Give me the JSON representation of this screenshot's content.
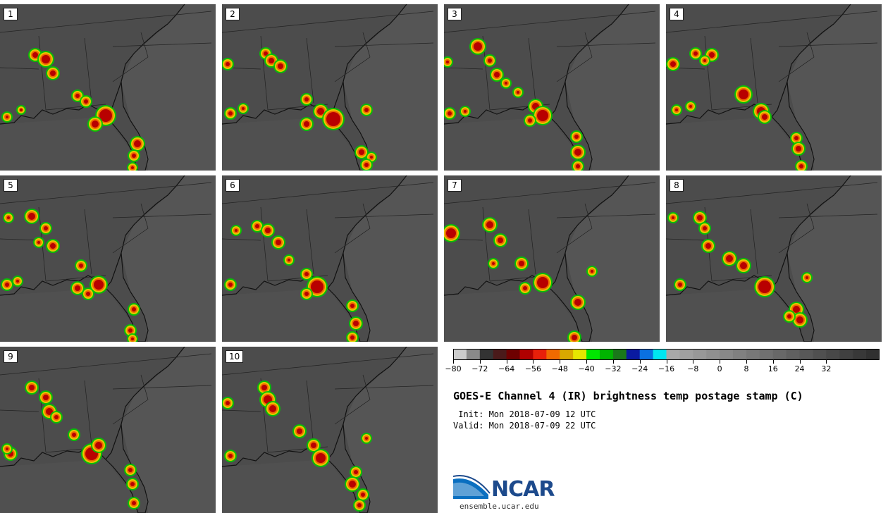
{
  "panels": [
    "1",
    "2",
    "3",
    "4",
    "5",
    "6",
    "7",
    "8",
    "9",
    "10"
  ],
  "colorbar": {
    "colors": [
      "#cccccc",
      "#8a8a8a",
      "#333333",
      "#4a1a1a",
      "#6e0000",
      "#b00000",
      "#e8200a",
      "#f06a00",
      "#d9a800",
      "#e6e600",
      "#00e600",
      "#00b400",
      "#1a781a",
      "#0a1aa0",
      "#0a70e0",
      "#00e6f0",
      "#a8a8a8",
      "#a0a0a0",
      "#989898",
      "#909090",
      "#888888",
      "#808080",
      "#787878",
      "#707070",
      "#686868",
      "#606060",
      "#585858",
      "#505050",
      "#484848",
      "#404040",
      "#383838",
      "#303030"
    ],
    "ticks": [
      "−80",
      "−72",
      "−64",
      "−56",
      "−48",
      "−40",
      "−32",
      "−24",
      "−16",
      "−8",
      "0",
      "8",
      "16",
      "24",
      "32"
    ]
  },
  "title": "GOES-E Channel 4 (IR) brightness temp postage stamp (C)",
  "init": " Init: Mon 2018-07-09 12 UTC",
  "valid": "Valid: Mon 2018-07-09 22 UTC",
  "logo": {
    "text": "NCAR",
    "url": "ensemble.ucar.edu"
  }
}
